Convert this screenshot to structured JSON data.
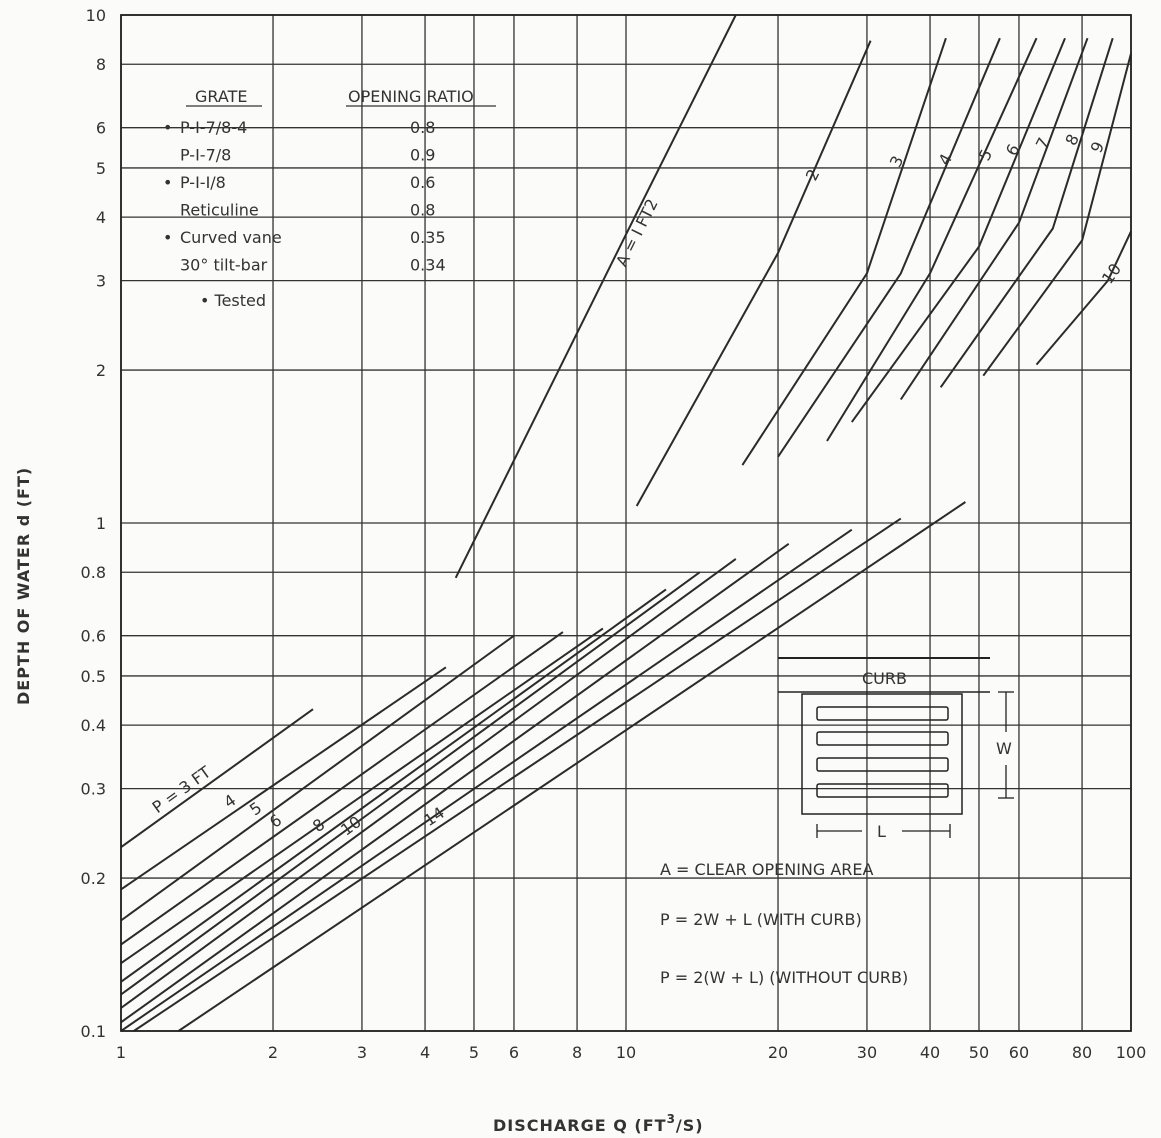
{
  "chart_data": {
    "type": "line",
    "xlabel": "DISCHARGE  Q   (FT",
    "xlabel_sup": "3",
    "xlabel_end": "/S)",
    "ylabel": "DEPTH OF WATER  d    (FT)",
    "xscale": "log",
    "yscale": "log",
    "xlim": [
      1,
      100
    ],
    "ylim": [
      0.1,
      10
    ],
    "grid": true,
    "x_ticks": [
      {
        "v": 1,
        "l": "1"
      },
      {
        "v": 2,
        "l": "2"
      },
      {
        "v": 3,
        "l": "3"
      },
      {
        "v": 4,
        "l": "4"
      },
      {
        "v": 5,
        "l": "5"
      },
      {
        "v": 6,
        "l": "6"
      },
      {
        "v": 8,
        "l": "8"
      },
      {
        "v": 10,
        "l": "10"
      },
      {
        "v": 20,
        "l": "20"
      },
      {
        "v": 30,
        "l": "30"
      },
      {
        "v": 40,
        "l": "40"
      },
      {
        "v": 50,
        "l": "50"
      },
      {
        "v": 60,
        "l": "60"
      },
      {
        "v": 80,
        "l": "80"
      },
      {
        "v": 100,
        "l": "100"
      }
    ],
    "y_ticks": [
      {
        "v": 0.1,
        "l": "0.1"
      },
      {
        "v": 0.2,
        "l": "0.2"
      },
      {
        "v": 0.3,
        "l": "0.3"
      },
      {
        "v": 0.4,
        "l": "0.4"
      },
      {
        "v": 0.5,
        "l": "0.5"
      },
      {
        "v": 0.6,
        "l": "0.6"
      },
      {
        "v": 0.8,
        "l": "0.8"
      },
      {
        "v": 1,
        "l": "1"
      },
      {
        "v": 2,
        "l": "2"
      },
      {
        "v": 3,
        "l": "3"
      },
      {
        "v": 4,
        "l": "4"
      },
      {
        "v": 5,
        "l": "5"
      },
      {
        "v": 6,
        "l": "6"
      },
      {
        "v": 8,
        "l": "8"
      },
      {
        "v": 10,
        "l": "10"
      }
    ],
    "area_curves": [
      {
        "label": "A = I FT2",
        "q": [
          4.6,
          10,
          16.5
        ],
        "d": [
          0.78,
          3.7,
          10
        ]
      },
      {
        "label": "2",
        "q": [
          10.5,
          20,
          30.5
        ],
        "d": [
          1.08,
          3.4,
          8.9
        ]
      },
      {
        "label": "3",
        "q": [
          17,
          30,
          43
        ],
        "d": [
          1.3,
          3.1,
          9
        ]
      },
      {
        "label": "4",
        "q": [
          20,
          35,
          55
        ],
        "d": [
          1.35,
          3.1,
          9
        ]
      },
      {
        "label": "5",
        "q": [
          25,
          40,
          65
        ],
        "d": [
          1.45,
          3.1,
          9
        ]
      },
      {
        "label": "6",
        "q": [
          28,
          50,
          74
        ],
        "d": [
          1.58,
          3.5,
          9
        ]
      },
      {
        "label": "7",
        "q": [
          35,
          60,
          82
        ],
        "d": [
          1.75,
          3.9,
          9
        ]
      },
      {
        "label": "8",
        "q": [
          42,
          70,
          92
        ],
        "d": [
          1.85,
          3.8,
          9
        ]
      },
      {
        "label": "9",
        "q": [
          51,
          80,
          100
        ],
        "d": [
          1.95,
          3.6,
          8.4
        ]
      },
      {
        "label": "10",
        "q": [
          65,
          90,
          100
        ],
        "d": [
          2.05,
          3.0,
          3.75
        ]
      }
    ],
    "perimeter_curves": [
      {
        "label": "P = 3 FT",
        "q": [
          1,
          2.4
        ],
        "d": [
          0.23,
          0.43
        ]
      },
      {
        "label": "4",
        "q": [
          1,
          4.4
        ],
        "d": [
          0.19,
          0.52
        ]
      },
      {
        "label": "5",
        "q": [
          1,
          6
        ],
        "d": [
          0.165,
          0.6
        ]
      },
      {
        "label": "6",
        "q": [
          1,
          7.5
        ],
        "d": [
          0.148,
          0.61
        ]
      },
      {
        "label": "",
        "q": [
          1,
          9
        ],
        "d": [
          0.136,
          0.62
        ]
      },
      {
        "label": "8",
        "q": [
          1,
          12
        ],
        "d": [
          0.125,
          0.74
        ]
      },
      {
        "label": "",
        "q": [
          1,
          14
        ],
        "d": [
          0.118,
          0.8
        ]
      },
      {
        "label": "10",
        "q": [
          1,
          16.5
        ],
        "d": [
          0.111,
          0.85
        ]
      },
      {
        "label": "",
        "q": [
          1,
          21
        ],
        "d": [
          0.104,
          0.91
        ]
      },
      {
        "label": "",
        "q": [
          1,
          28
        ],
        "d": [
          0.1,
          0.97
        ]
      },
      {
        "label": "14",
        "q": [
          1.06,
          35
        ],
        "d": [
          0.1,
          1.02
        ]
      },
      {
        "label": "",
        "q": [
          1.3,
          47
        ],
        "d": [
          0.1,
          1.1
        ]
      }
    ]
  },
  "legend_table": {
    "col1_header": "GRATE",
    "col2_header": "OPENING RATIO",
    "rows": [
      {
        "marker": "•",
        "grate": "P-I-7/8-4",
        "ratio": "0.8"
      },
      {
        "marker": "",
        "grate": "P-I-7/8",
        "ratio": "0.9"
      },
      {
        "marker": "•",
        "grate": "P-I-I/8",
        "ratio": "0.6"
      },
      {
        "marker": "",
        "grate": "Reticuline",
        "ratio": "0.8"
      },
      {
        "marker": "•",
        "grate": "Curved vane",
        "ratio": "0.35"
      },
      {
        "marker": "",
        "grate": "30° tilt-bar",
        "ratio": "0.34"
      }
    ],
    "footnote": "• Tested"
  },
  "inset": {
    "curb_label": "CURB",
    "w_label": "W",
    "l_label": "L"
  },
  "definitions": [
    "A = CLEAR  OPENING  AREA",
    "P = 2W + L     (WITH   CURB)",
    "P = 2(W + L)     (WITHOUT   CURB)"
  ]
}
